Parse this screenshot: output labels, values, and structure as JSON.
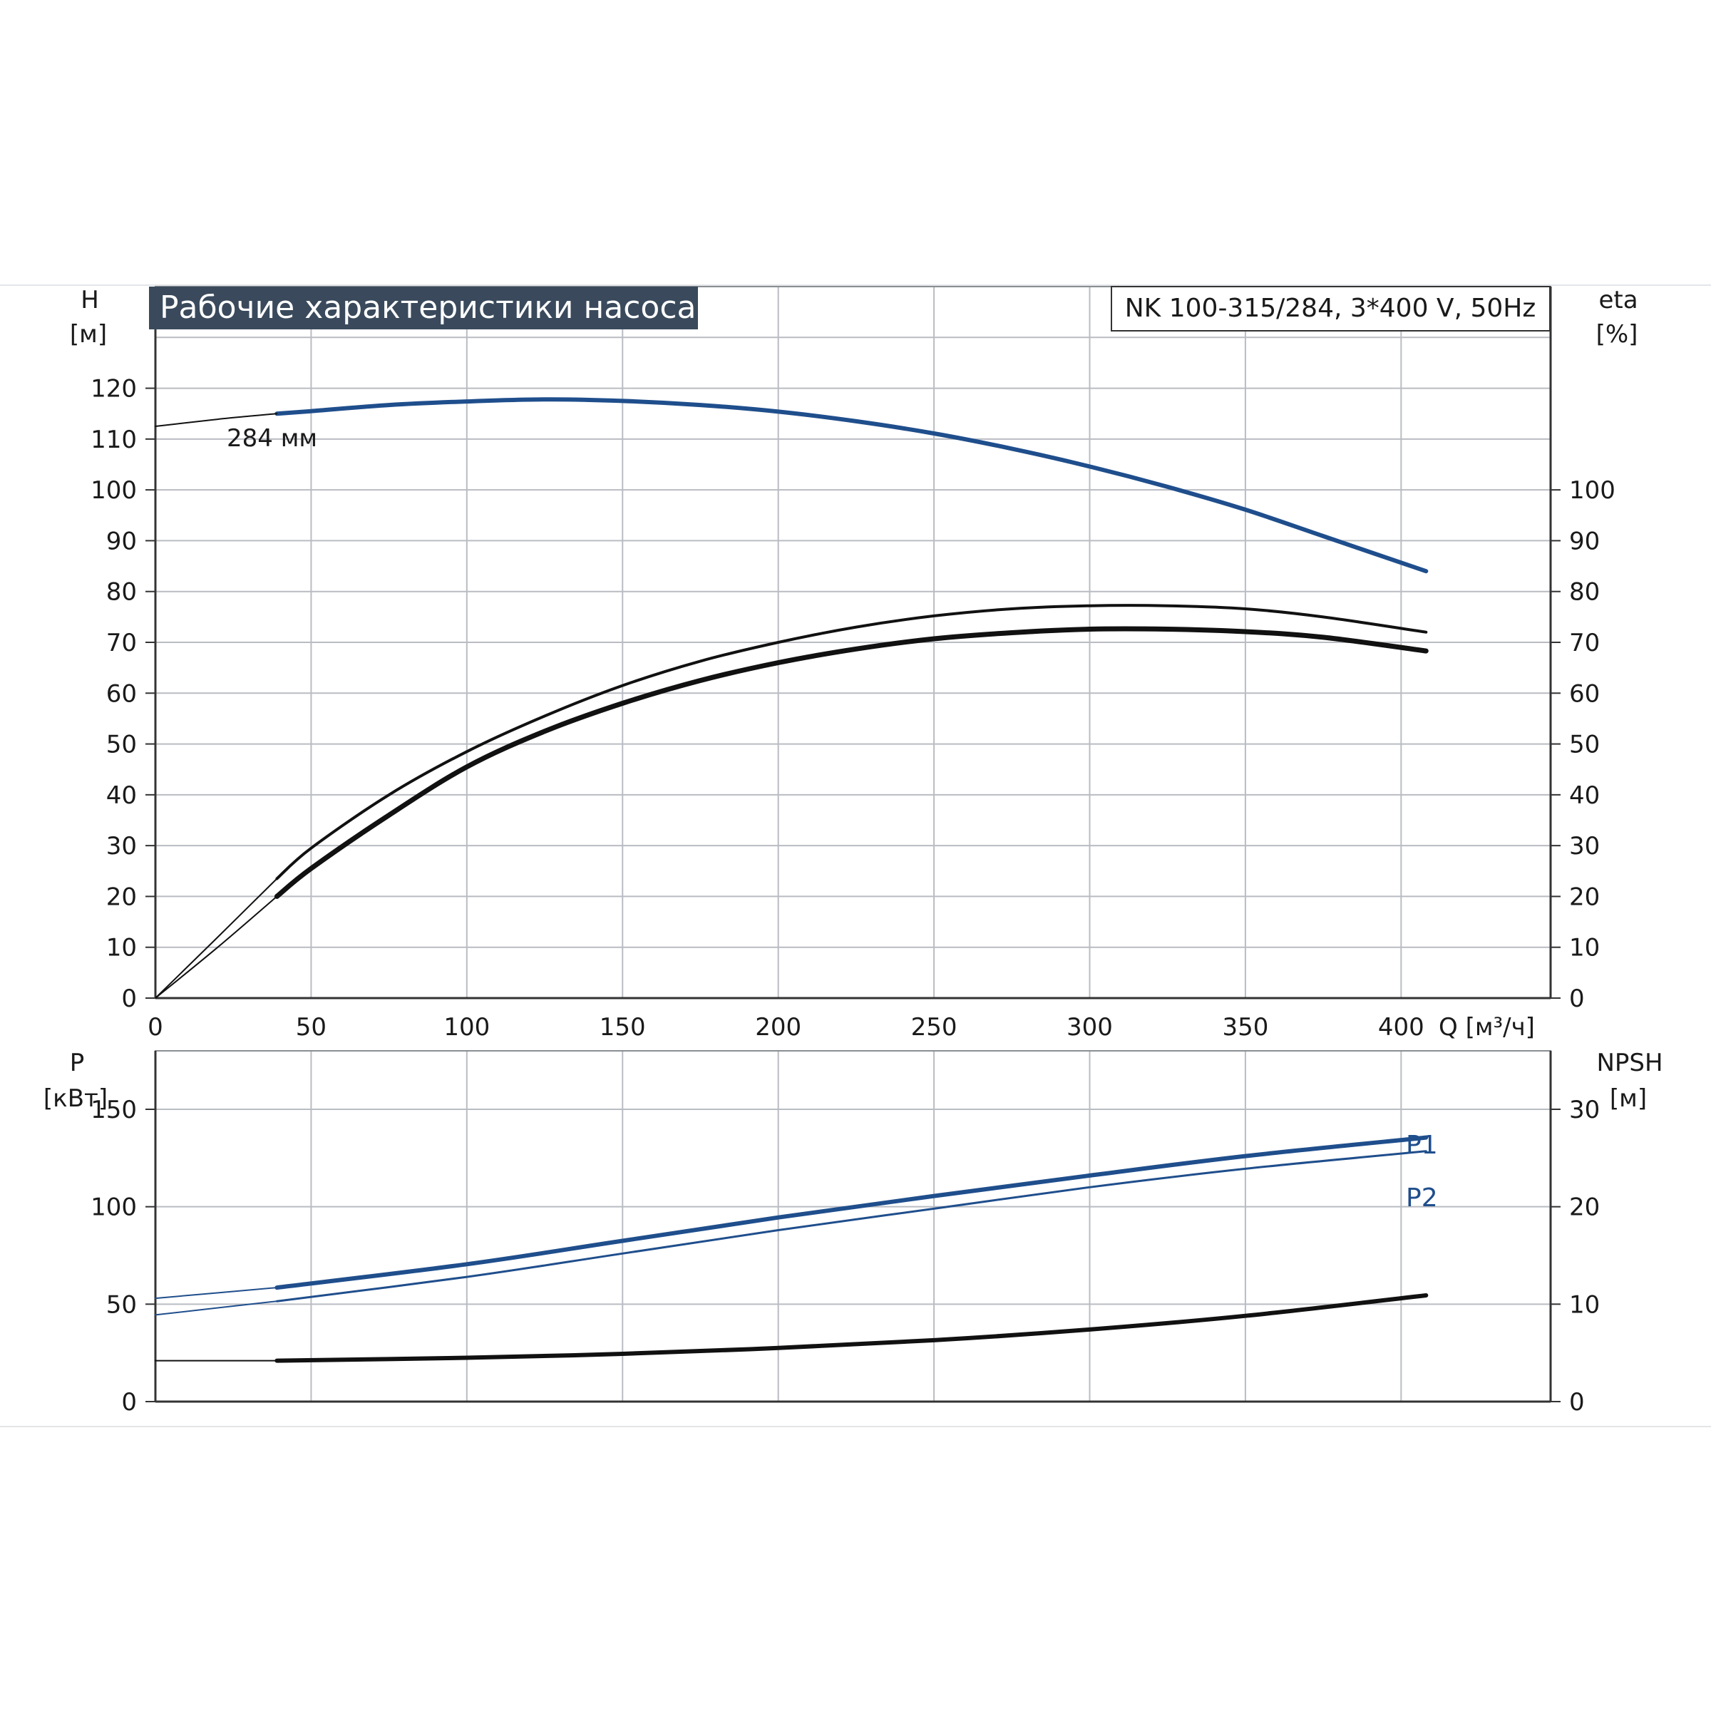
{
  "title": "Рабочие характеристики насоса",
  "model_label": "NK 100-315/284, 3*400 V, 50Hz",
  "colors": {
    "blue": "#1f4e8c",
    "black": "#111111",
    "grid": "#b9bcc2",
    "title_bg": "#3a4a5c"
  },
  "chart_data": [
    {
      "type": "line",
      "y_left": {
        "label": "H",
        "unit": "[м]",
        "range": [
          0,
          140
        ],
        "ticks": [
          0,
          10,
          20,
          30,
          40,
          50,
          60,
          70,
          80,
          90,
          100,
          110,
          120
        ]
      },
      "y_right": {
        "label": "eta",
        "unit": "[%]",
        "range": [
          0,
          140
        ],
        "ticks": [
          0,
          10,
          20,
          30,
          40,
          50,
          60,
          70,
          80,
          90,
          100
        ]
      },
      "x": {
        "label": "Q [м³/ч]",
        "range": [
          0,
          448
        ],
        "ticks": [
          0,
          50,
          100,
          150,
          200,
          250,
          300,
          350,
          400
        ]
      },
      "grid": true,
      "annotation": "284 мм",
      "series": [
        {
          "role": "head",
          "color": "blue",
          "width": 6,
          "x": [
            39,
            50,
            75,
            100,
            125,
            150,
            175,
            200,
            225,
            250,
            275,
            300,
            325,
            350,
            375,
            408
          ],
          "y": [
            115,
            115.5,
            116.7,
            117.4,
            117.8,
            117.5,
            116.7,
            115.4,
            113.5,
            111.1,
            108.1,
            104.6,
            100.6,
            96.1,
            90.9,
            84
          ]
        },
        {
          "role": "head-extension",
          "color": "black",
          "width": 2,
          "x": [
            0,
            10,
            20,
            30,
            39
          ],
          "y": [
            112.5,
            113.2,
            113.9,
            114.5,
            115
          ]
        },
        {
          "role": "efficiency-thin",
          "color": "black",
          "width": 4,
          "x": [
            39,
            50,
            75,
            100,
            125,
            150,
            175,
            200,
            225,
            250,
            275,
            300,
            325,
            350,
            375,
            408
          ],
          "y": [
            23.5,
            29.5,
            40,
            48.5,
            55.5,
            61.5,
            66.3,
            70,
            73,
            75.2,
            76.6,
            77.2,
            77.2,
            76.6,
            75,
            72
          ]
        },
        {
          "role": "efficiency-bold",
          "color": "black",
          "width": 7,
          "x": [
            39,
            50,
            75,
            100,
            125,
            150,
            175,
            200,
            225,
            250,
            275,
            300,
            325,
            350,
            375,
            408
          ],
          "y": [
            20,
            25.5,
            36,
            45.5,
            52.5,
            58,
            62.5,
            66,
            68.7,
            70.7,
            71.9,
            72.6,
            72.6,
            72.1,
            71,
            68.3
          ]
        },
        {
          "role": "efficiency-thin-extension",
          "color": "black",
          "width": 2,
          "x": [
            0,
            20,
            39
          ],
          "y": [
            0,
            12,
            23.5
          ]
        },
        {
          "role": "efficiency-bold-extension",
          "color": "black",
          "width": 2,
          "x": [
            0,
            20,
            39
          ],
          "y": [
            0,
            10,
            20
          ]
        }
      ]
    },
    {
      "type": "line",
      "y_left": {
        "label": "P",
        "unit": "[кВт]",
        "range": [
          0,
          180
        ],
        "ticks": [
          0,
          50,
          100,
          150
        ]
      },
      "y_right": {
        "label": "NPSH",
        "unit": "[м]",
        "range": [
          0,
          36
        ],
        "ticks": [
          0,
          10,
          20,
          30
        ]
      },
      "x": {
        "range": [
          0,
          448
        ],
        "ticks": [
          0,
          50,
          100,
          150,
          200,
          250,
          300,
          350,
          400
        ]
      },
      "grid": true,
      "series": [
        {
          "name": "P1",
          "color": "blue",
          "width": 6,
          "x": [
            39,
            100,
            150,
            200,
            250,
            300,
            350,
            408
          ],
          "y": [
            58.5,
            70.5,
            82.5,
            94.5,
            105.5,
            116,
            126,
            135.5
          ]
        },
        {
          "name": "P2",
          "color": "blue",
          "width": 3,
          "x": [
            39,
            100,
            150,
            200,
            250,
            300,
            350,
            408
          ],
          "y": [
            51.5,
            64,
            76,
            88,
            99,
            110,
            119.5,
            128.5
          ]
        },
        {
          "role": "P1-extension",
          "color": "blue",
          "width": 2,
          "x": [
            0,
            39
          ],
          "y": [
            53,
            58.5
          ]
        },
        {
          "role": "P2-extension",
          "color": "blue",
          "width": 2,
          "x": [
            0,
            39
          ],
          "y": [
            44.5,
            51.5
          ]
        },
        {
          "role": "npsh",
          "axis": "right",
          "color": "black",
          "width": 6,
          "x": [
            39,
            100,
            150,
            200,
            250,
            300,
            350,
            408
          ],
          "y": [
            4.2,
            4.5,
            4.9,
            5.5,
            6.3,
            7.4,
            8.8,
            10.9
          ]
        },
        {
          "role": "npsh-extension",
          "axis": "right",
          "color": "black",
          "width": 2,
          "x": [
            0,
            39
          ],
          "y": [
            4.2,
            4.2
          ]
        }
      ]
    }
  ]
}
